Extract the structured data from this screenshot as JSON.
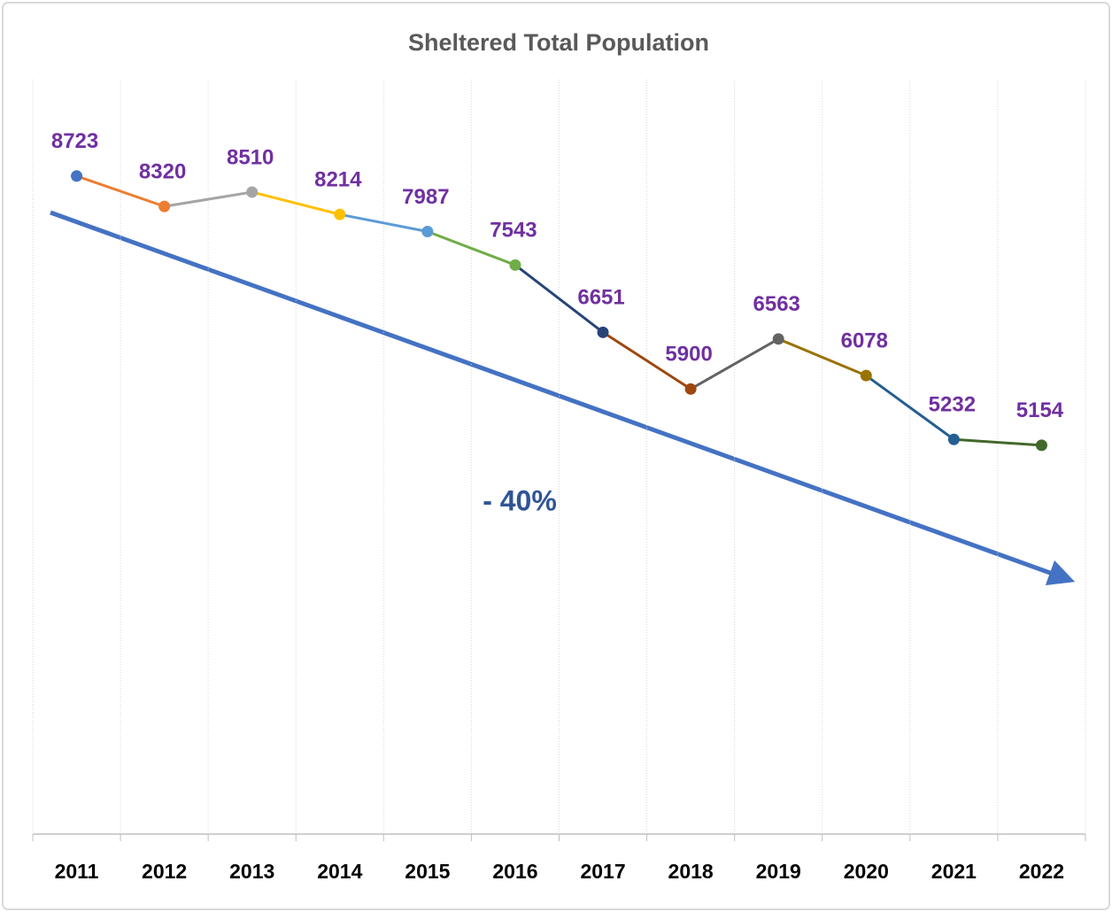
{
  "chart_data": {
    "type": "line",
    "title": "Sheltered Total Population",
    "categories": [
      "2011",
      "2012",
      "2013",
      "2014",
      "2015",
      "2016",
      "2017",
      "2018",
      "2019",
      "2020",
      "2021",
      "2022"
    ],
    "values": [
      8723,
      8320,
      8510,
      8214,
      7987,
      7543,
      6651,
      5900,
      6563,
      6078,
      5232,
      5154
    ],
    "colors": [
      "#4472c4",
      "#ed7d31",
      "#a5a5a5",
      "#ffc000",
      "#5b9bd5",
      "#70ad47",
      "#264478",
      "#9e480e",
      "#636363",
      "#997300",
      "#255e91",
      "#43682b"
    ],
    "ylim": [
      0,
      10000
    ],
    "grid": true,
    "annotation": "- 40%"
  }
}
